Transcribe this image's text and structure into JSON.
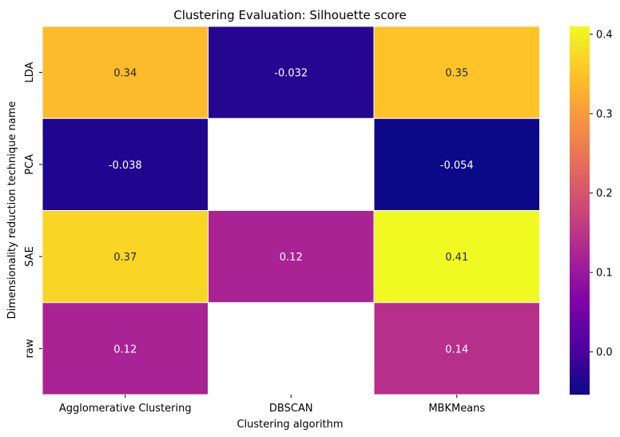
{
  "chart_data": {
    "type": "heatmap",
    "title": "Clustering Evaluation: Silhouette score",
    "xlabel": "Clustering algorithm",
    "ylabel": "Dimensionality reduction technique name",
    "x_categories": [
      "Agglomerative Clustering",
      "DBSCAN",
      "MBKMeans"
    ],
    "y_categories": [
      "LDA",
      "PCA",
      "SAE",
      "raw"
    ],
    "values": [
      [
        0.34,
        -0.032,
        0.35
      ],
      [
        -0.038,
        null,
        -0.054
      ],
      [
        0.37,
        0.12,
        0.41
      ],
      [
        0.12,
        null,
        0.14
      ]
    ],
    "value_labels": [
      [
        "0.34",
        "-0.032",
        "0.35"
      ],
      [
        "-0.038",
        "",
        "-0.054"
      ],
      [
        "0.37",
        "0.12",
        "0.41"
      ],
      [
        "0.12",
        "",
        "0.14"
      ]
    ],
    "colormap": "plasma",
    "color_range": [
      -0.054,
      0.41
    ],
    "colorbar_ticks": [
      0.0,
      0.1,
      0.2,
      0.3,
      0.4
    ],
    "colorbar_tick_labels": [
      "0.0",
      "0.1",
      "0.2",
      "0.3",
      "0.4"
    ],
    "missing_cells_color": "#ffffff",
    "cell_border_color": "#ffffff"
  }
}
